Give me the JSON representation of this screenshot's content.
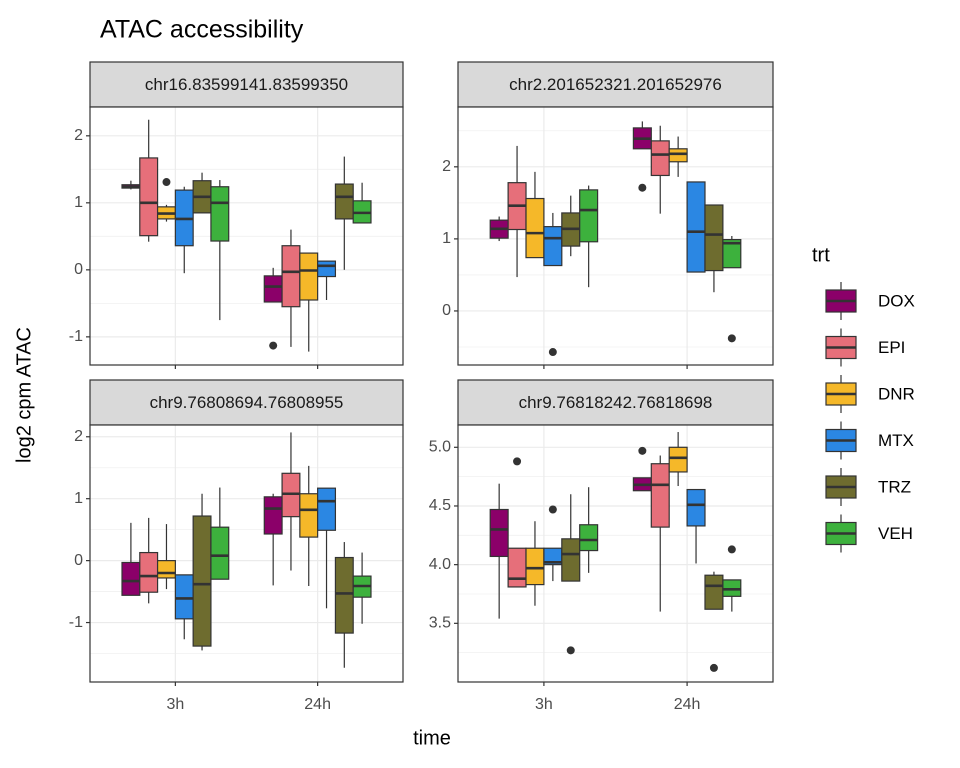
{
  "chart_data": {
    "type": "boxplot",
    "title": "ATAC accessibility",
    "xlabel": "time",
    "ylabel": "log2 cpm ATAC",
    "legend_title": "trt",
    "categories": [
      "3h",
      "24h"
    ],
    "series": [
      {
        "name": "DOX",
        "color": "#8B0069"
      },
      {
        "name": "EPI",
        "color": "#E66F7A"
      },
      {
        "name": "DNR",
        "color": "#F5B829"
      },
      {
        "name": "MTX",
        "color": "#2B87E3"
      },
      {
        "name": "TRZ",
        "color": "#6E6C2F"
      },
      {
        "name": "VEH",
        "color": "#3DB13D"
      }
    ],
    "grid": true,
    "panels": [
      {
        "title": "chr16.83599141.83599350",
        "ylim": [
          -1.42,
          2.43
        ],
        "yticks": [
          -1,
          0,
          1,
          2
        ],
        "boxes": [
          [
            {
              "min": 1.2,
              "q1": 1.22,
              "median": 1.24,
              "q3": 1.27,
              "max": 1.33
            },
            {
              "min": 0.42,
              "q1": 0.51,
              "median": 1.0,
              "q3": 1.67,
              "max": 2.24
            },
            {
              "min": 0.72,
              "q1": 0.76,
              "median": 0.84,
              "q3": 0.94,
              "max": 0.97,
              "outliers": [
                1.31
              ]
            },
            {
              "min": -0.05,
              "q1": 0.36,
              "median": 0.76,
              "q3": 1.19,
              "max": 1.24
            },
            {
              "min": 0.85,
              "q1": 0.85,
              "median": 1.09,
              "q3": 1.33,
              "max": 1.45
            },
            {
              "min": -0.75,
              "q1": 0.43,
              "median": 1.0,
              "q3": 1.24,
              "max": 1.34
            }
          ],
          [
            {
              "min": -0.48,
              "q1": -0.48,
              "median": -0.25,
              "q3": -0.09,
              "max": 0.03,
              "outliers": [
                -1.13
              ]
            },
            {
              "min": -1.15,
              "q1": -0.55,
              "median": -0.03,
              "q3": 0.36,
              "max": 0.6
            },
            {
              "min": -1.22,
              "q1": -0.45,
              "median": -0.01,
              "q3": 0.25,
              "max": 0.25
            },
            {
              "min": -0.45,
              "q1": -0.1,
              "median": 0.06,
              "q3": 0.13,
              "max": 0.13
            },
            {
              "min": 0.0,
              "q1": 0.76,
              "median": 1.09,
              "q3": 1.28,
              "max": 1.69
            },
            {
              "min": 0.7,
              "q1": 0.7,
              "median": 0.85,
              "q3": 1.03,
              "max": 1.3
            }
          ]
        ]
      },
      {
        "title": "chr2.201652321.201652976",
        "ylim": [
          -0.75,
          2.83
        ],
        "yticks": [
          0,
          1,
          2
        ],
        "boxes": [
          [
            {
              "min": 0.97,
              "q1": 1.01,
              "median": 1.14,
              "q3": 1.26,
              "max": 1.31
            },
            {
              "min": 0.47,
              "q1": 1.13,
              "median": 1.46,
              "q3": 1.78,
              "max": 2.29
            },
            {
              "min": 0.74,
              "q1": 0.74,
              "median": 1.08,
              "q3": 1.56,
              "max": 1.93
            },
            {
              "min": 0.63,
              "q1": 0.63,
              "median": 1.01,
              "q3": 1.17,
              "max": 1.36,
              "outliers": [
                -0.57
              ]
            },
            {
              "min": 0.76,
              "q1": 0.9,
              "median": 1.14,
              "q3": 1.36,
              "max": 1.6
            },
            {
              "min": 0.33,
              "q1": 0.96,
              "median": 1.4,
              "q3": 1.68,
              "max": 1.74
            }
          ],
          [
            {
              "min": 2.25,
              "q1": 2.25,
              "median": 2.39,
              "q3": 2.54,
              "max": 2.63,
              "outliers": [
                1.71
              ]
            },
            {
              "min": 1.35,
              "q1": 1.88,
              "median": 2.17,
              "q3": 2.36,
              "max": 2.57
            },
            {
              "min": 1.86,
              "q1": 2.07,
              "median": 2.18,
              "q3": 2.25,
              "max": 2.42
            },
            {
              "min": 0.54,
              "q1": 0.54,
              "median": 1.1,
              "q3": 1.79,
              "max": 1.79
            },
            {
              "min": 0.26,
              "q1": 0.56,
              "median": 1.06,
              "q3": 1.47,
              "max": 1.47
            },
            {
              "min": 0.6,
              "q1": 0.6,
              "median": 0.94,
              "q3": 0.99,
              "max": 1.04,
              "outliers": [
                -0.38
              ]
            }
          ]
        ]
      },
      {
        "title": "chr9.76808694.76808955",
        "ylim": [
          -1.96,
          2.19
        ],
        "yticks": [
          -1,
          0,
          1,
          2
        ],
        "boxes": [
          [
            {
              "min": -0.56,
              "q1": -0.56,
              "median": -0.33,
              "q3": -0.03,
              "max": 0.61
            },
            {
              "min": -0.69,
              "q1": -0.51,
              "median": -0.25,
              "q3": 0.13,
              "max": 0.69
            },
            {
              "min": -0.46,
              "q1": -0.28,
              "median": -0.2,
              "q3": 0.0,
              "max": 0.59
            },
            {
              "min": -1.27,
              "q1": -0.94,
              "median": -0.61,
              "q3": -0.23,
              "max": -0.23
            },
            {
              "min": -1.45,
              "q1": -1.38,
              "median": -0.38,
              "q3": 0.72,
              "max": 1.08
            },
            {
              "min": -0.3,
              "q1": -0.3,
              "median": 0.08,
              "q3": 0.54,
              "max": 1.18
            }
          ],
          [
            {
              "min": -0.4,
              "q1": 0.43,
              "median": 0.84,
              "q3": 1.03,
              "max": 1.08
            },
            {
              "min": -0.16,
              "q1": 0.71,
              "median": 1.08,
              "q3": 1.41,
              "max": 2.07
            },
            {
              "min": -0.41,
              "q1": 0.38,
              "median": 0.82,
              "q3": 1.08,
              "max": 1.53
            },
            {
              "min": -0.77,
              "q1": 0.49,
              "median": 0.96,
              "q3": 1.17,
              "max": 1.17
            },
            {
              "min": -1.73,
              "q1": -1.17,
              "median": -0.53,
              "q3": 0.05,
              "max": 0.3
            },
            {
              "min": -1.02,
              "q1": -0.59,
              "median": -0.41,
              "q3": -0.25,
              "max": 0.13
            }
          ]
        ]
      },
      {
        "title": "chr9.76818242.76818698",
        "ylim": [
          3.0,
          5.19
        ],
        "yticks": [
          {
            "value": 3.5,
            "label": "3.5"
          },
          {
            "value": 4,
            "label": "4.0"
          },
          {
            "value": 4.5,
            "label": "4.5"
          },
          {
            "value": 5,
            "label": "5.0"
          }
        ],
        "boxes": [
          [
            {
              "min": 3.54,
              "q1": 4.07,
              "median": 4.3,
              "q3": 4.47,
              "max": 4.69
            },
            {
              "min": 3.81,
              "q1": 3.81,
              "median": 3.88,
              "q3": 4.14,
              "max": 4.14,
              "outliers": [
                4.88
              ]
            },
            {
              "min": 3.65,
              "q1": 3.83,
              "median": 3.97,
              "q3": 4.14,
              "max": 4.37
            },
            {
              "min": 3.86,
              "q1": 4.0,
              "median": 4.02,
              "q3": 4.14,
              "max": 4.14,
              "outliers": [
                4.47
              ]
            },
            {
              "min": 3.86,
              "q1": 3.86,
              "median": 4.09,
              "q3": 4.22,
              "max": 4.6,
              "outliers": [
                3.27
              ]
            },
            {
              "min": 3.93,
              "q1": 4.12,
              "median": 4.21,
              "q3": 4.34,
              "max": 4.66
            }
          ],
          [
            {
              "min": 4.63,
              "q1": 4.63,
              "median": 4.68,
              "q3": 4.74,
              "max": 4.74,
              "outliers": [
                4.97
              ]
            },
            {
              "min": 3.6,
              "q1": 4.32,
              "median": 4.68,
              "q3": 4.86,
              "max": 4.93
            },
            {
              "min": 4.67,
              "q1": 4.79,
              "median": 4.91,
              "q3": 5.0,
              "max": 5.13
            },
            {
              "min": 4.01,
              "q1": 4.33,
              "median": 4.51,
              "q3": 4.64,
              "max": 4.64
            },
            {
              "min": 3.62,
              "q1": 3.62,
              "median": 3.82,
              "q3": 3.91,
              "max": 3.94,
              "outliers": [
                3.12
              ]
            },
            {
              "min": 3.6,
              "q1": 3.73,
              "median": 3.79,
              "q3": 3.87,
              "max": 3.87,
              "outliers": [
                4.13
              ]
            }
          ]
        ]
      }
    ]
  }
}
